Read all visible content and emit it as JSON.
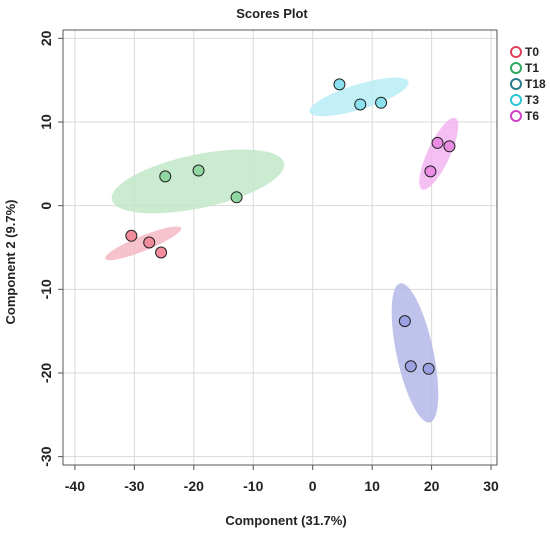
{
  "chart_data": {
    "type": "scatter",
    "title": "Scores Plot",
    "xlabel": "Component  (31.7%)",
    "ylabel": "Component  2 (9.7%)",
    "xlim": [
      -42,
      31
    ],
    "ylim": [
      -31,
      21
    ],
    "xticks": [
      -40,
      -30,
      -20,
      -10,
      0,
      10,
      20,
      30
    ],
    "yticks": [
      20,
      10,
      0,
      -10,
      -20,
      -30
    ],
    "grid": true,
    "legend_position": "right",
    "series": [
      {
        "name": "T0",
        "color": "#e0405a",
        "fill": "#f08c9c",
        "ellipse_fill": "#f5b8c4",
        "points": [
          [
            -30.5,
            -3.6
          ],
          [
            -27.5,
            -4.4
          ],
          [
            -25.5,
            -5.6
          ]
        ],
        "ellipse": {
          "cx": -28.5,
          "cy": -4.5,
          "rx": 6.9,
          "ry": 0.9,
          "angle_deg": -22
        }
      },
      {
        "name": "T1",
        "color": "#2eaa62",
        "fill": "#8fd6a0",
        "ellipse_fill": "#c2e8c8",
        "points": [
          [
            -24.8,
            3.5
          ],
          [
            -19.2,
            4.2
          ],
          [
            -12.8,
            1.0
          ]
        ],
        "ellipse": {
          "cx": -19.3,
          "cy": 2.9,
          "rx": 14.8,
          "ry": 3.2,
          "angle_deg": -12
        }
      },
      {
        "name": "T18",
        "color": "#2a7c8a",
        "fill": "#9aa0e0",
        "ellipse_fill": "#b4b8e8",
        "points": [
          [
            15.5,
            -13.8
          ],
          [
            16.5,
            -19.2
          ],
          [
            19.5,
            -19.5
          ]
        ],
        "ellipse": {
          "cx": 17.2,
          "cy": -17.6,
          "rx": 3.1,
          "ry": 8.5,
          "angle_deg": -12
        }
      },
      {
        "name": "T3",
        "color": "#2cc6d4",
        "fill": "#8ae0ec",
        "ellipse_fill": "#b8edf5",
        "points": [
          [
            4.5,
            14.5
          ],
          [
            8.0,
            12.1
          ],
          [
            11.5,
            12.3
          ]
        ],
        "ellipse": {
          "cx": 7.8,
          "cy": 13.0,
          "rx": 8.7,
          "ry": 1.5,
          "angle_deg": -17
        }
      },
      {
        "name": "T6",
        "color": "#d040c8",
        "fill": "#e88ce4",
        "ellipse_fill": "#f2b4f0",
        "points": [
          [
            21.0,
            7.5
          ],
          [
            23.0,
            7.1
          ],
          [
            19.8,
            4.1
          ]
        ],
        "ellipse": {
          "cx": 21.2,
          "cy": 6.2,
          "rx": 1.9,
          "ry": 4.7,
          "angle_deg": 25
        }
      }
    ]
  }
}
